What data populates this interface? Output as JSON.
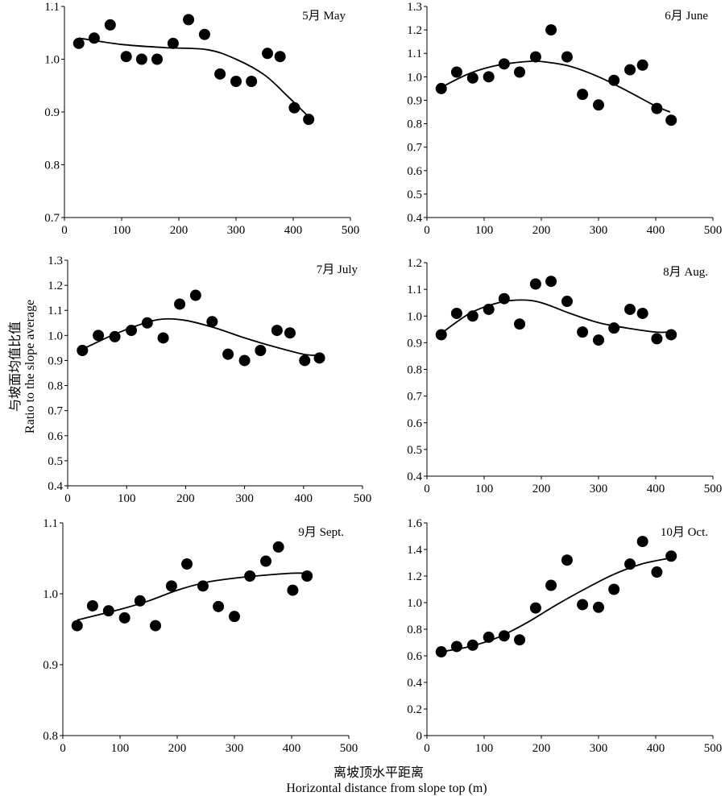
{
  "figure": {
    "y_title_cn": "与坡面均值比值",
    "y_title_en": "Ratio to the slope average",
    "x_title_cn": "离坡顶水平距离",
    "x_title_en": "Horizontal distance from slope top (m)"
  },
  "chart_data": [
    {
      "type": "scatter",
      "label": "5月 May",
      "xlim": [
        0,
        500
      ],
      "xticks": [
        0,
        100,
        200,
        300,
        400,
        500
      ],
      "ylim": [
        0.7,
        1.1
      ],
      "yticks": [
        0.7,
        0.8,
        0.9,
        1.0,
        1.1
      ],
      "ydecimals": 1,
      "x": [
        25,
        52,
        80,
        108,
        135,
        162,
        190,
        217,
        245,
        272,
        300,
        327,
        355,
        377,
        402,
        427
      ],
      "y": [
        1.03,
        1.04,
        1.065,
        1.005,
        1.0,
        1.0,
        1.03,
        1.075,
        1.047,
        0.972,
        0.958,
        0.958,
        1.011,
        1.005,
        0.908,
        0.886
      ],
      "trend": {
        "x": [
          25,
          100,
          175,
          250,
          300,
          350,
          390,
          425
        ],
        "y": [
          1.04,
          1.028,
          1.022,
          1.018,
          1.0,
          0.97,
          0.93,
          0.893
        ]
      }
    },
    {
      "type": "scatter",
      "label": "6月 June",
      "xlim": [
        0,
        500
      ],
      "xticks": [
        0,
        100,
        200,
        300,
        400,
        500
      ],
      "ylim": [
        0.4,
        1.3
      ],
      "yticks": [
        0.4,
        0.5,
        0.6,
        0.7,
        0.8,
        0.9,
        1.0,
        1.1,
        1.2,
        1.3
      ],
      "ydecimals": 1,
      "x": [
        25,
        52,
        80,
        108,
        135,
        162,
        190,
        217,
        245,
        272,
        300,
        327,
        355,
        377,
        402,
        427
      ],
      "y": [
        0.95,
        1.02,
        0.995,
        1.0,
        1.055,
        1.02,
        1.085,
        1.2,
        1.085,
        0.925,
        0.88,
        0.985,
        1.03,
        1.05,
        0.865,
        0.815
      ],
      "trend": {
        "x": [
          25,
          75,
          125,
          175,
          200,
          250,
          300,
          350,
          400,
          425
        ],
        "y": [
          0.955,
          1.015,
          1.05,
          1.065,
          1.065,
          1.045,
          1.0,
          0.94,
          0.875,
          0.85
        ]
      }
    },
    {
      "type": "scatter",
      "label": "7月 July",
      "xlim": [
        0,
        500
      ],
      "xticks": [
        0,
        100,
        200,
        300,
        400,
        500
      ],
      "ylim": [
        0.4,
        1.3
      ],
      "yticks": [
        0.4,
        0.5,
        0.6,
        0.7,
        0.8,
        0.9,
        1.0,
        1.1,
        1.2,
        1.3
      ],
      "ydecimals": 1,
      "x": [
        25,
        52,
        80,
        108,
        135,
        162,
        190,
        217,
        245,
        272,
        300,
        327,
        355,
        377,
        402,
        427
      ],
      "y": [
        0.94,
        1.0,
        0.995,
        1.02,
        1.05,
        0.99,
        1.125,
        1.16,
        1.055,
        0.925,
        0.9,
        0.94,
        1.02,
        1.01,
        0.9,
        0.91
      ],
      "trend": {
        "x": [
          25,
          75,
          125,
          160,
          200,
          250,
          300,
          350,
          400,
          425
        ],
        "y": [
          0.945,
          1.0,
          1.045,
          1.065,
          1.06,
          1.03,
          0.99,
          0.955,
          0.925,
          0.92
        ]
      }
    },
    {
      "type": "scatter",
      "label": "8月 Aug.",
      "xlim": [
        0,
        500
      ],
      "xticks": [
        0,
        100,
        200,
        300,
        400,
        500
      ],
      "ylim": [
        0.4,
        1.2
      ],
      "yticks": [
        0.4,
        0.5,
        0.6,
        0.7,
        0.8,
        0.9,
        1.0,
        1.1,
        1.2
      ],
      "ydecimals": 1,
      "x": [
        25,
        52,
        80,
        108,
        135,
        162,
        190,
        217,
        245,
        272,
        300,
        327,
        355,
        377,
        402,
        427
      ],
      "y": [
        0.93,
        1.01,
        1.0,
        1.025,
        1.065,
        0.97,
        1.12,
        1.13,
        1.055,
        0.94,
        0.91,
        0.955,
        1.025,
        1.01,
        0.915,
        0.93
      ],
      "trend": {
        "x": [
          25,
          75,
          125,
          165,
          200,
          250,
          300,
          350,
          400,
          425
        ],
        "y": [
          0.935,
          1.01,
          1.05,
          1.06,
          1.05,
          1.01,
          0.975,
          0.955,
          0.94,
          0.94
        ]
      }
    },
    {
      "type": "scatter",
      "label": "9月 Sept.",
      "xlim": [
        0,
        500
      ],
      "xticks": [
        0,
        100,
        200,
        300,
        400,
        500
      ],
      "ylim": [
        0.8,
        1.1
      ],
      "yticks": [
        0.8,
        0.9,
        1.0,
        1.1
      ],
      "ydecimals": 1,
      "x": [
        25,
        52,
        80,
        108,
        135,
        162,
        190,
        217,
        245,
        272,
        300,
        327,
        355,
        377,
        402,
        427
      ],
      "y": [
        0.955,
        0.983,
        0.976,
        0.966,
        0.99,
        0.955,
        1.011,
        1.042,
        1.011,
        0.982,
        0.968,
        1.025,
        1.046,
        1.066,
        1.005,
        1.025
      ],
      "trend": {
        "x": [
          25,
          100,
          150,
          200,
          250,
          300,
          350,
          400,
          425
        ],
        "y": [
          0.963,
          0.978,
          0.99,
          1.005,
          1.016,
          1.022,
          1.026,
          1.029,
          1.029
        ]
      }
    },
    {
      "type": "scatter",
      "label": "10月 Oct.",
      "xlim": [
        0,
        500
      ],
      "xticks": [
        0,
        100,
        200,
        300,
        400,
        500
      ],
      "ylim": [
        0,
        1.6
      ],
      "yticks": [
        0,
        0.2,
        0.4,
        0.6,
        0.8,
        1.0,
        1.2,
        1.4,
        1.6
      ],
      "ydecimals": 1,
      "y0label": "0",
      "x": [
        25,
        52,
        80,
        108,
        135,
        162,
        190,
        217,
        245,
        272,
        300,
        327,
        355,
        377,
        402,
        427
      ],
      "y": [
        0.63,
        0.67,
        0.68,
        0.74,
        0.75,
        0.72,
        0.96,
        1.13,
        1.32,
        0.985,
        0.965,
        1.1,
        1.29,
        1.46,
        1.23,
        1.35
      ],
      "trend": {
        "x": [
          25,
          75,
          125,
          175,
          225,
          275,
          325,
          375,
          425
        ],
        "y": [
          0.63,
          0.67,
          0.74,
          0.85,
          0.98,
          1.1,
          1.21,
          1.29,
          1.335
        ]
      }
    }
  ]
}
